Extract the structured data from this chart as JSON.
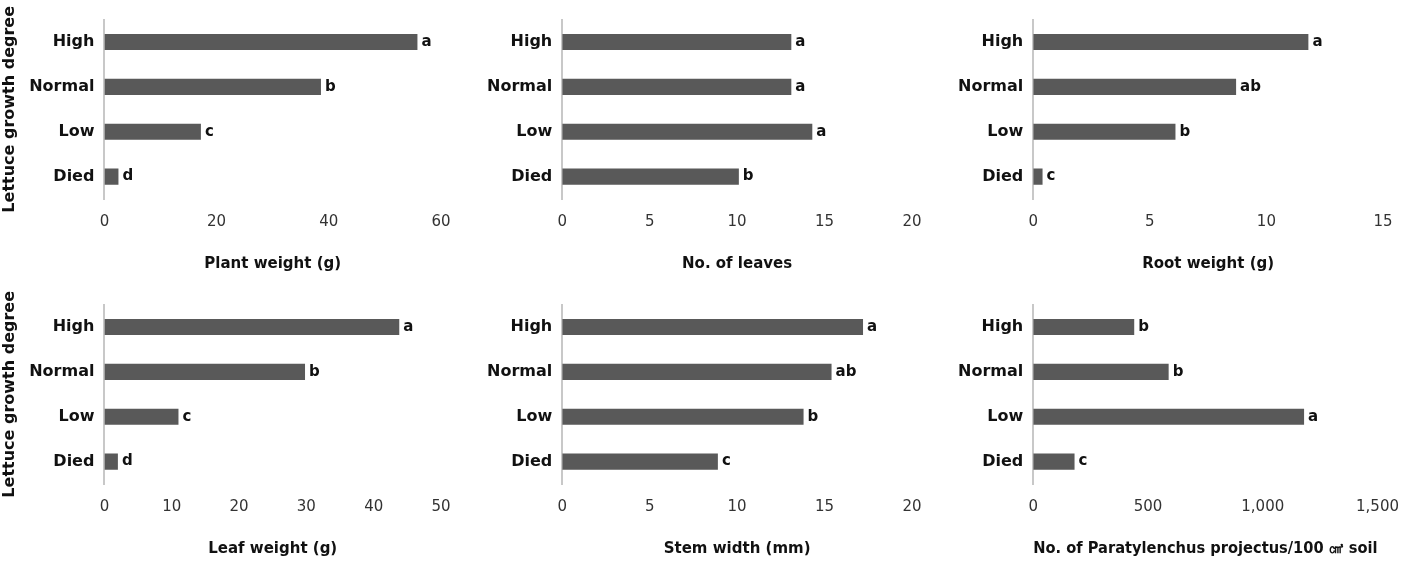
{
  "chart_data": [
    {
      "type": "bar",
      "orientation": "horizontal",
      "categories": [
        "High",
        "Normal",
        "Low",
        "Died"
      ],
      "values": [
        55.8,
        38.6,
        17.2,
        2.5
      ],
      "color": "#595959",
      "value_labels": [
        "a",
        "b",
        "c",
        "d"
      ],
      "xlabel": "Plant weight (g)",
      "ylabel": "Lettuce growth degree",
      "xlim": [
        0,
        60
      ],
      "xticks": [
        0,
        20,
        40,
        60
      ],
      "grid": false,
      "legend": false
    },
    {
      "type": "bar",
      "orientation": "horizontal",
      "categories": [
        "High",
        "Normal",
        "Low",
        "Died"
      ],
      "values": [
        13.1,
        13.1,
        14.3,
        10.1
      ],
      "color": "#595959",
      "value_labels": [
        "a",
        "a",
        "a",
        "b"
      ],
      "xlabel": "No. of leaves",
      "xlim": [
        0,
        20
      ],
      "xticks": [
        0,
        5,
        10,
        15,
        20
      ],
      "grid": false,
      "legend": false
    },
    {
      "type": "bar",
      "orientation": "horizontal",
      "categories": [
        "High",
        "Normal",
        "Low",
        "Died"
      ],
      "values": [
        11.8,
        8.7,
        6.1,
        0.4
      ],
      "color": "#595959",
      "value_labels": [
        "a",
        "ab",
        "b",
        "c"
      ],
      "xlabel": "Root weight (g)",
      "xlim": [
        0,
        15
      ],
      "xticks": [
        0,
        5,
        10,
        15
      ],
      "grid": false,
      "legend": false
    },
    {
      "type": "bar",
      "orientation": "horizontal",
      "categories": [
        "High",
        "Normal",
        "Low",
        "Died"
      ],
      "values": [
        43.8,
        29.8,
        11.0,
        2.0
      ],
      "color": "#595959",
      "value_labels": [
        "a",
        "b",
        "c",
        "d"
      ],
      "xlabel": "Leaf weight (g)",
      "ylabel": "Lettuce growth degree",
      "xlim": [
        0,
        50
      ],
      "xticks": [
        0,
        10,
        20,
        30,
        40,
        50
      ],
      "grid": false,
      "legend": false
    },
    {
      "type": "bar",
      "orientation": "horizontal",
      "categories": [
        "High",
        "Normal",
        "Low",
        "Died"
      ],
      "values": [
        17.2,
        15.4,
        13.8,
        8.9
      ],
      "color": "#595959",
      "value_labels": [
        "a",
        "ab",
        "b",
        "c"
      ],
      "xlabel": "Stem width (mm)",
      "xlim": [
        0,
        20
      ],
      "xticks": [
        0,
        5,
        10,
        15,
        20
      ],
      "grid": false,
      "legend": false
    },
    {
      "type": "bar",
      "orientation": "horizontal",
      "categories": [
        "High",
        "Normal",
        "Low",
        "Died"
      ],
      "values": [
        440,
        590,
        1180,
        180
      ],
      "color": "#595959",
      "value_labels": [
        "b",
        "b",
        "a",
        "c"
      ],
      "xlabel": "No. of Paratylenchus projectus/100 ㎤ soil",
      "xlim": [
        0,
        1500
      ],
      "xticks": [
        0,
        500,
        {
          "value": 1000,
          "label": "1,000"
        },
        {
          "value": 1500,
          "label": "1,500"
        }
      ],
      "grid": false,
      "legend": false
    }
  ]
}
